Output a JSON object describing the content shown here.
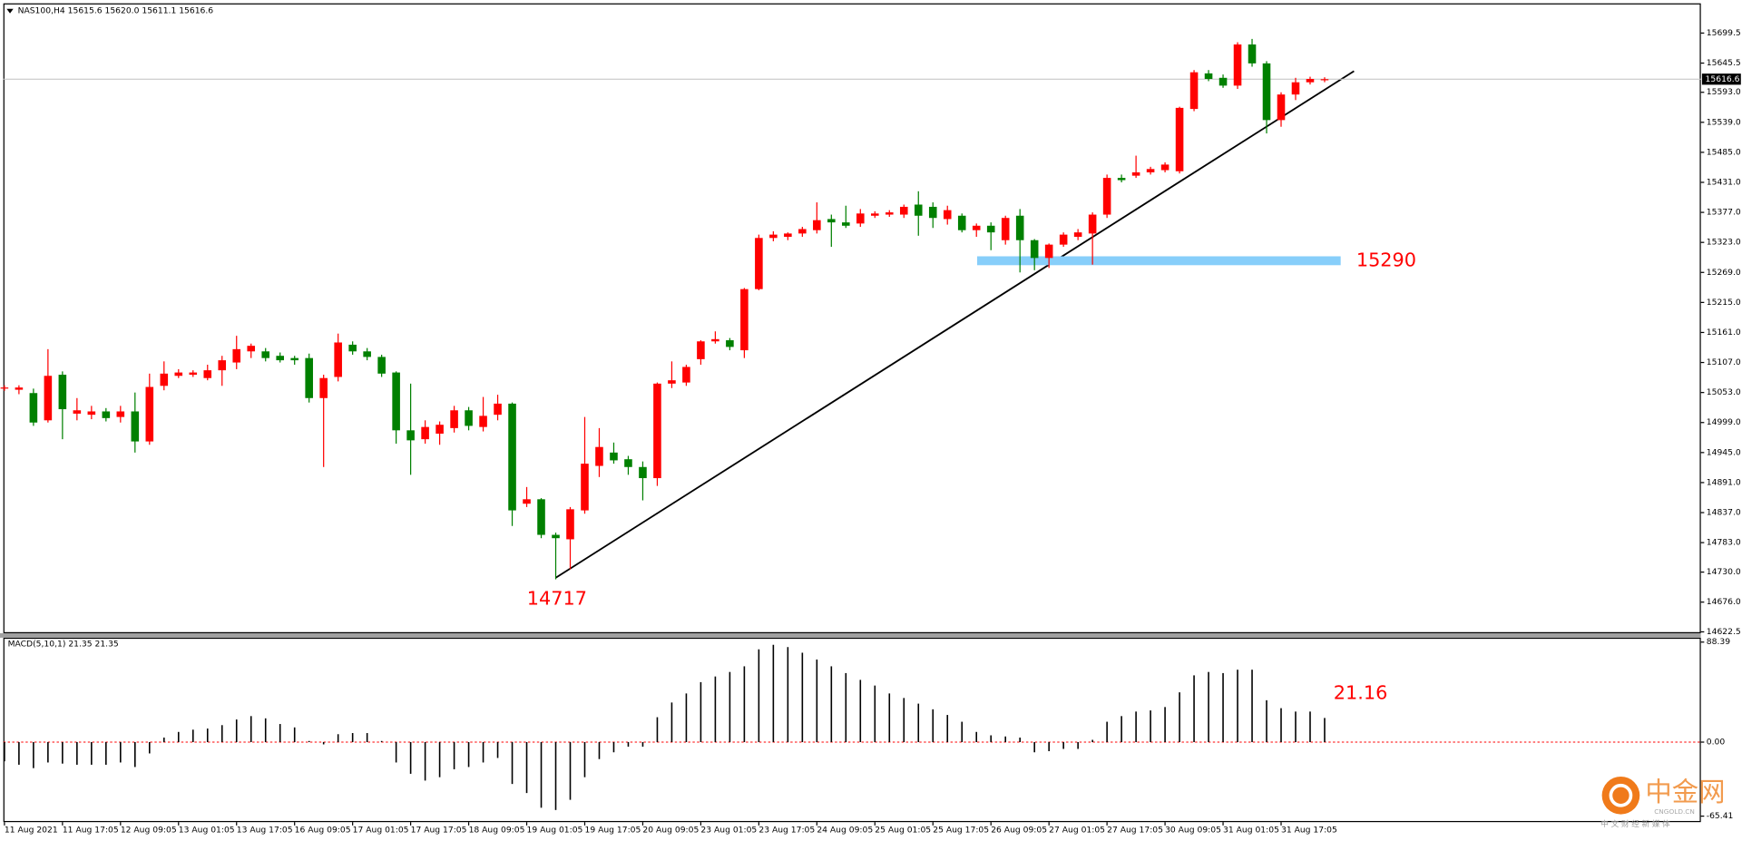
{
  "chart_data": [
    {
      "type": "candlestick",
      "title": "NAS100,H4  15615.6 15620.0 15611.1 15616.6",
      "open": [
        15060,
        15058,
        15052,
        15003,
        15085,
        15015,
        15013,
        15019,
        15009,
        15019,
        14965,
        15065,
        15083,
        15085,
        15079,
        15093,
        15107,
        15127,
        15127,
        15119,
        15115,
        15115,
        15043,
        15081,
        15139,
        15127,
        15117,
        15089,
        14985,
        14969,
        14979,
        14989,
        15021,
        14991,
        15013,
        15033,
        14853,
        14861,
        14797,
        14789,
        14841,
        14921,
        14945,
        14933,
        14919,
        14899,
        15069,
        15071,
        15113,
        15145,
        15147,
        15129,
        15239,
        15331,
        15333,
        15339,
        15345,
        15365,
        15359,
        15357,
        15371,
        15373,
        15373,
        15391,
        15387,
        15365,
        15371,
        15345,
        15353,
        15327,
        15371,
        15327,
        15295,
        15319,
        15333,
        15339,
        15373,
        15439,
        15443,
        15449,
        15453,
        15451,
        15563,
        15627,
        15619,
        15605,
        15679,
        15645,
        15543,
        15589,
        15611,
        15615.6
      ],
      "high": [
        15066,
        15066,
        15060,
        15131,
        15091,
        15043,
        15029,
        15025,
        15029,
        15053,
        15087,
        15109,
        15095,
        15093,
        15103,
        15119,
        15155,
        15141,
        15133,
        15125,
        15119,
        15123,
        15085,
        15159,
        15145,
        15133,
        15121,
        15091,
        15069,
        15003,
        15001,
        15029,
        15027,
        15045,
        15049,
        15035,
        14883,
        14863,
        14801,
        14847,
        15009,
        14989,
        14963,
        14939,
        14929,
        15071,
        15109,
        15103,
        15147,
        15163,
        15151,
        15241,
        15337,
        15343,
        15341,
        15351,
        15395,
        15373,
        15389,
        15383,
        15379,
        15381,
        15391,
        15415,
        15395,
        15389,
        15375,
        15357,
        15359,
        15371,
        15383,
        15329,
        15321,
        15341,
        15347,
        15377,
        15445,
        15445,
        15479,
        15459,
        15467,
        15567,
        15633,
        15633,
        15625,
        15683,
        15689,
        15649,
        15593,
        15619,
        15621,
        15620
      ],
      "low": [
        15056,
        15050,
        14993,
        14999,
        14969,
        15003,
        15005,
        15001,
        14999,
        14945,
        14959,
        15057,
        15079,
        15081,
        15075,
        15065,
        15095,
        15115,
        15109,
        15107,
        15103,
        15035,
        14919,
        15073,
        15121,
        15111,
        15081,
        14961,
        14905,
        14961,
        14959,
        14981,
        14985,
        14983,
        15003,
        14813,
        14847,
        14791,
        14717,
        14735,
        14835,
        14901,
        14925,
        14905,
        14859,
        14885,
        15061,
        15065,
        15103,
        15141,
        15129,
        15115,
        15237,
        15325,
        15327,
        15333,
        15339,
        15315,
        15349,
        15351,
        15367,
        15369,
        15367,
        15335,
        15349,
        15355,
        15341,
        15333,
        15309,
        15319,
        15269,
        15273,
        15277,
        15315,
        15327,
        15283,
        15367,
        15431,
        15439,
        15445,
        15449,
        15447,
        15559,
        15613,
        15601,
        15599,
        15639,
        15519,
        15531,
        15579,
        15607,
        15611.1
      ],
      "close": [
        15062,
        15062,
        14999,
        15083,
        15023,
        15021,
        15019,
        15007,
        15019,
        14965,
        15063,
        15087,
        15089,
        15089,
        15093,
        15111,
        15131,
        15137,
        15115,
        15111,
        15111,
        15043,
        15079,
        15143,
        15127,
        15117,
        15087,
        14985,
        14967,
        14991,
        14995,
        15021,
        14993,
        15011,
        15033,
        14841,
        14861,
        14797,
        14791,
        14843,
        14925,
        14955,
        14931,
        14919,
        14899,
        15069,
        15075,
        15099,
        15145,
        15149,
        15135,
        15239,
        15331,
        15337,
        15339,
        15347,
        15363,
        15359,
        15353,
        15375,
        15375,
        15377,
        15387,
        15371,
        15367,
        15381,
        15345,
        15353,
        15341,
        15367,
        15327,
        15295,
        15319,
        15337,
        15341,
        15373,
        15439,
        15435,
        15449,
        15455,
        15463,
        15565,
        15629,
        15617,
        15605,
        15679,
        15645,
        15543,
        15589,
        15611,
        15617,
        15616.6
      ],
      "up_color": "#ff0000",
      "down_color": "#008000",
      "ylim": [
        14620,
        15751
      ],
      "yticks": [
        {
          "value": 15699.5,
          "label": "15699.5"
        },
        {
          "value": 15645.5,
          "label": "15645.5"
        },
        {
          "value": 15593,
          "label": "15593.0"
        },
        {
          "value": 15539,
          "label": "15539.0"
        },
        {
          "value": 15485,
          "label": "15485.0"
        },
        {
          "value": 15431,
          "label": "15431.0"
        },
        {
          "value": 15377,
          "label": "15377.0"
        },
        {
          "value": 15323,
          "label": "15323.0"
        },
        {
          "value": 15269,
          "label": "15269.0"
        },
        {
          "value": 15215,
          "label": "15215.0"
        },
        {
          "value": 15161,
          "label": "15161.0"
        },
        {
          "value": 15107,
          "label": "15107.0"
        },
        {
          "value": 15053,
          "label": "15053.0"
        },
        {
          "value": 14999,
          "label": "14999.0"
        },
        {
          "value": 14945,
          "label": "14945.0"
        },
        {
          "value": 14891,
          "label": "14891.0"
        },
        {
          "value": 14837,
          "label": "14837.0"
        },
        {
          "value": 14783,
          "label": "14783.0"
        },
        {
          "value": 14730,
          "label": "14730.0"
        },
        {
          "value": 14676,
          "label": "14676.0"
        },
        {
          "value": 14622.5,
          "label": "14622.5"
        }
      ],
      "xticks": [
        {
          "value": 0,
          "label": "11 Aug 2021"
        },
        {
          "value": 4,
          "label": "11 Aug 17:05"
        },
        {
          "value": 8,
          "label": "12 Aug 09:05"
        },
        {
          "value": 12,
          "label": "13 Aug 01:05"
        },
        {
          "value": 16,
          "label": "13 Aug 17:05"
        },
        {
          "value": 20,
          "label": "16 Aug 09:05"
        },
        {
          "value": 24,
          "label": "17 Aug 01:05"
        },
        {
          "value": 28,
          "label": "17 Aug 17:05"
        },
        {
          "value": 32,
          "label": "18 Aug 09:05"
        },
        {
          "value": 36,
          "label": "19 Aug 01:05"
        },
        {
          "value": 40,
          "label": "19 Aug 17:05"
        },
        {
          "value": 44,
          "label": "20 Aug 09:05"
        },
        {
          "value": 48,
          "label": "23 Aug 01:05"
        },
        {
          "value": 52,
          "label": "23 Aug 17:05"
        },
        {
          "value": 56,
          "label": "24 Aug 09:05"
        },
        {
          "value": 60,
          "label": "25 Aug 01:05"
        },
        {
          "value": 64,
          "label": "25 Aug 17:05"
        },
        {
          "value": 68,
          "label": "26 Aug 09:05"
        },
        {
          "value": 72,
          "label": "27 Aug 01:05"
        },
        {
          "value": 76,
          "label": "27 Aug 17:05"
        },
        {
          "value": 80,
          "label": "30 Aug 09:05"
        },
        {
          "value": 84,
          "label": "31 Aug 01:05"
        },
        {
          "value": 88,
          "label": "31 Aug 17:05"
        }
      ],
      "current_price": 15616.6,
      "support_level": 15290,
      "low_label": 14717,
      "zone_color": "#87cefa"
    },
    {
      "type": "bar",
      "title": "MACD(5,10,1) 21.35 21.35",
      "values": [
        -17,
        -20,
        -23,
        -18,
        -19,
        -20,
        -20,
        -20,
        -18,
        -22,
        -10,
        4,
        9,
        11,
        12,
        15,
        20,
        23,
        21,
        16,
        13,
        1,
        -2,
        7,
        8,
        8,
        1,
        -18,
        -28,
        -34,
        -31,
        -24,
        -22,
        -18,
        -14,
        -37,
        -45,
        -58,
        -60,
        -51,
        -31,
        -15,
        -9,
        -4,
        -4,
        22,
        35,
        43,
        53,
        58,
        62,
        67,
        82,
        86,
        84,
        79,
        73,
        67,
        61,
        55,
        50,
        43,
        39,
        34,
        29,
        24,
        18,
        9,
        6,
        5,
        4,
        -9,
        -8,
        -6,
        -6,
        2,
        18,
        23,
        27,
        28,
        31,
        44,
        59,
        62,
        61,
        64,
        64,
        37,
        30,
        27,
        27,
        21.35
      ],
      "color": "#000000",
      "ylim": [
        -70.7,
        91.3
      ],
      "yticks": [
        {
          "value": 88.39,
          "label": "88.39"
        },
        {
          "value": 0,
          "label": "0.00"
        },
        {
          "value": -65.41,
          "label": "-65.41"
        }
      ],
      "annotation": 21.16
    }
  ],
  "watermark": {
    "name": "中金网",
    "site": "CNGOLD.CN",
    "slogan": "中 文 财 经 新 媒 体"
  }
}
